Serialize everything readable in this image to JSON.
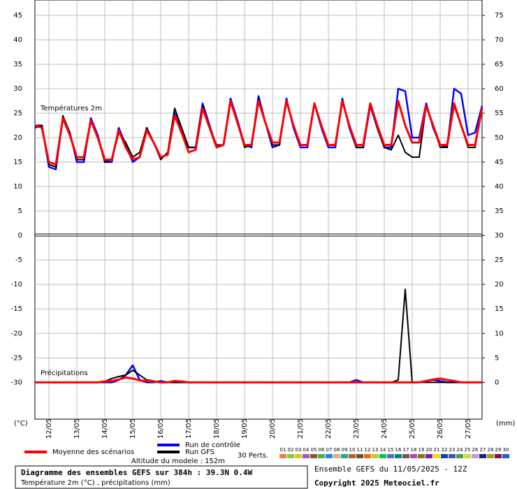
{
  "chart_data": {
    "type": "line",
    "categories": [
      null,
      null,
      "12/05",
      null,
      null,
      null,
      "13/05",
      null,
      null,
      null,
      "14/05",
      null,
      null,
      null,
      "15/05",
      null,
      null,
      null,
      "16/05",
      null,
      null,
      null,
      "17/05",
      null,
      null,
      null,
      "18/05",
      null,
      null,
      null,
      "19/05",
      null,
      null,
      null,
      "20/05",
      null,
      null,
      null,
      "21/05",
      null,
      null,
      null,
      "22/05",
      null,
      null,
      null,
      "23/05",
      null,
      null,
      null,
      "24/05",
      null,
      null,
      null,
      "25/05",
      null,
      null,
      null,
      "26/05",
      null,
      null,
      null,
      "27/05",
      null,
      null
    ],
    "grid": true,
    "y_unit_label": "(°C)",
    "y2_unit_label": "(mm)",
    "panels": [
      {
        "title": "Températures 2m",
        "ylim": [
          0,
          48
        ],
        "yticks": [
          5,
          10,
          15,
          20,
          25,
          30,
          35,
          40,
          45
        ],
        "y2lim": [
          30,
          78
        ],
        "y2ticks": [
          35,
          40,
          45,
          50,
          55,
          60,
          65,
          70,
          75
        ],
        "series": [
          {
            "name": "Run de contrôle",
            "color": "#0000ff",
            "values": [
              22,
              22.5,
              14,
              13.5,
              24,
              21,
              15,
              15,
              24,
              20.5,
              15,
              15,
              22,
              18.5,
              15,
              16,
              22,
              19,
              16,
              16.5,
              25,
              21.5,
              18,
              18,
              27,
              22.5,
              18,
              18.5,
              28,
              23.5,
              18.5,
              18,
              28.5,
              23,
              18,
              18.5,
              28,
              22,
              18,
              18,
              27,
              22,
              18,
              18,
              28,
              22,
              18,
              18,
              26.5,
              22,
              18,
              18,
              30,
              29.5,
              20,
              20,
              27,
              22,
              18.5,
              18,
              30,
              29,
              20.5,
              21,
              26.5
            ]
          },
          {
            "name": "Run GFS",
            "color": "#000000",
            "values": [
              22.5,
              22.5,
              14.5,
              14,
              24.5,
              21,
              15.5,
              15.5,
              23.5,
              20,
              15,
              15.5,
              21,
              19,
              16,
              17,
              22,
              19,
              15.5,
              17,
              26,
              22,
              18,
              18,
              26.5,
              22,
              18.5,
              18.5,
              27.5,
              23,
              18,
              18.5,
              28,
              23,
              18.5,
              18.5,
              27.5,
              22.5,
              18.5,
              18.5,
              27,
              22.5,
              18.5,
              18.5,
              27.5,
              22.5,
              18,
              18,
              27,
              22,
              18,
              17.5,
              20.5,
              17,
              16,
              16,
              26.5,
              22.5,
              18,
              18,
              26.5,
              22.5,
              18,
              18,
              26
            ]
          },
          {
            "name": "Moyenne des scénarios",
            "color": "#ff0000",
            "values": [
              22.5,
              22,
              15,
              14.5,
              24,
              20.5,
              16,
              16,
              23.5,
              20,
              15.5,
              15.5,
              21.5,
              18,
              15.5,
              16,
              21.5,
              19,
              16,
              16.5,
              24.5,
              21,
              17,
              17.5,
              26,
              22,
              18,
              18.5,
              27.5,
              23,
              18.5,
              18.5,
              27.5,
              23,
              19,
              19,
              27.5,
              22.5,
              18.5,
              18.5,
              27,
              22.5,
              18.5,
              18.5,
              27.5,
              22.5,
              18.5,
              18.5,
              27,
              22.5,
              18.5,
              18.5,
              27.5,
              22.5,
              19,
              19,
              26.5,
              22.5,
              18.5,
              18.5,
              27,
              22.5,
              18.5,
              18.5,
              26
            ]
          }
        ]
      },
      {
        "title": "Précipitations",
        "ylim": [
          -37.5,
          0
        ],
        "yticks": [
          -30,
          -25,
          -20,
          -15,
          -10,
          -5,
          0
        ],
        "y2lim": [
          -7.5,
          30
        ],
        "y2ticks": [
          0,
          5,
          10,
          15,
          20,
          25,
          30
        ],
        "series": [
          {
            "color": "#0000ff",
            "axis": "y2",
            "values": [
              0,
              0,
              0,
              0,
              0,
              0,
              0,
              0,
              0,
              0,
              0,
              0,
              0.5,
              1.5,
              3.5,
              0.5,
              0,
              0,
              0.3,
              0,
              0,
              0,
              0,
              0,
              0,
              0,
              0,
              0,
              0,
              0,
              0,
              0,
              0,
              0,
              0,
              0,
              0,
              0,
              0,
              0,
              0,
              0,
              0,
              0,
              0,
              0,
              0.5,
              0,
              0,
              0,
              0,
              0,
              0,
              0,
              0,
              0,
              0.3,
              0.5,
              0.3,
              0,
              0,
              0,
              0,
              0,
              0
            ]
          },
          {
            "color": "#000000",
            "axis": "y2",
            "values": [
              0,
              0,
              0,
              0,
              0,
              0,
              0,
              0,
              0,
              0,
              0.2,
              0.8,
              1.2,
              1.5,
              2.5,
              1.5,
              0.5,
              0.3,
              0,
              0,
              0,
              0,
              0,
              0,
              0,
              0,
              0,
              0,
              0,
              0,
              0,
              0,
              0,
              0,
              0,
              0,
              0,
              0,
              0,
              0,
              0,
              0,
              0,
              0,
              0,
              0,
              0,
              0,
              0,
              0,
              0,
              0,
              0.5,
              19,
              0,
              0,
              0,
              0,
              0,
              0,
              0,
              0,
              0,
              0,
              0
            ]
          },
          {
            "color": "#ff0000",
            "axis": "y2",
            "values": [
              0,
              0,
              0,
              0,
              0,
              0,
              0,
              0,
              0,
              0,
              0.2,
              0.3,
              0.6,
              1,
              0.8,
              0.4,
              0.3,
              0.2,
              0,
              0,
              0.3,
              0.2,
              0,
              0,
              0,
              0,
              0,
              0,
              0,
              0,
              0,
              0,
              0,
              0,
              0,
              0,
              0,
              0,
              0,
              0,
              0,
              0,
              0,
              0,
              0,
              0,
              0,
              0,
              0,
              0,
              0,
              0,
              0,
              0,
              0,
              0,
              0.3,
              0.6,
              0.8,
              0.5,
              0.3,
              0,
              0,
              0,
              0
            ]
          }
        ]
      }
    ],
    "perturbations": {
      "label": "30 Perts.",
      "items": [
        {
          "name": "01",
          "color": "#e8823a"
        },
        {
          "name": "02",
          "color": "#8cc63f"
        },
        {
          "name": "03",
          "color": "#e6c619"
        },
        {
          "name": "04",
          "color": "#9b59b6"
        },
        {
          "name": "05",
          "color": "#8b5a2b"
        },
        {
          "name": "06",
          "color": "#4caf50"
        },
        {
          "name": "07",
          "color": "#1e88e5"
        },
        {
          "name": "08",
          "color": "#d4b483"
        },
        {
          "name": "09",
          "color": "#26a69a"
        },
        {
          "name": "10",
          "color": "#b5651d"
        },
        {
          "name": "11",
          "color": "#6d4c41"
        },
        {
          "name": "12",
          "color": "#ef6c00"
        },
        {
          "name": "13",
          "color": "#c0ca33"
        },
        {
          "name": "14",
          "color": "#00c853"
        },
        {
          "name": "15",
          "color": "#5c6bc0"
        },
        {
          "name": "16",
          "color": "#00897b"
        },
        {
          "name": "17",
          "color": "#795548"
        },
        {
          "name": "18",
          "color": "#ab47bc"
        },
        {
          "name": "19",
          "color": "#827717"
        },
        {
          "name": "20",
          "color": "#7b1fa2"
        },
        {
          "name": "21",
          "color": "#ffd600"
        },
        {
          "name": "22",
          "color": "#0d47a1"
        },
        {
          "name": "23",
          "color": "#3f51b5"
        },
        {
          "name": "24",
          "color": "#43a047"
        },
        {
          "name": "25",
          "color": "#cddc39"
        },
        {
          "name": "26",
          "color": "#ce93d8"
        },
        {
          "name": "27",
          "color": "#1a237e"
        },
        {
          "name": "28",
          "color": "#9e9d24"
        },
        {
          "name": "29",
          "color": "#880e4f"
        },
        {
          "name": "30",
          "color": "#1565c0"
        }
      ]
    }
  },
  "altitude": "Altitude du modele : 152m",
  "footer": {
    "title": "Diagramme des ensembles GEFS sur 384h : 39.3N 0.4W",
    "subtitle": "Température 2m (°C) , précipitations (mm)",
    "run": "Ensemble GEFS du 11/05/2025 - 12Z",
    "copyright": "Copyright 2025 Meteociel.fr"
  }
}
